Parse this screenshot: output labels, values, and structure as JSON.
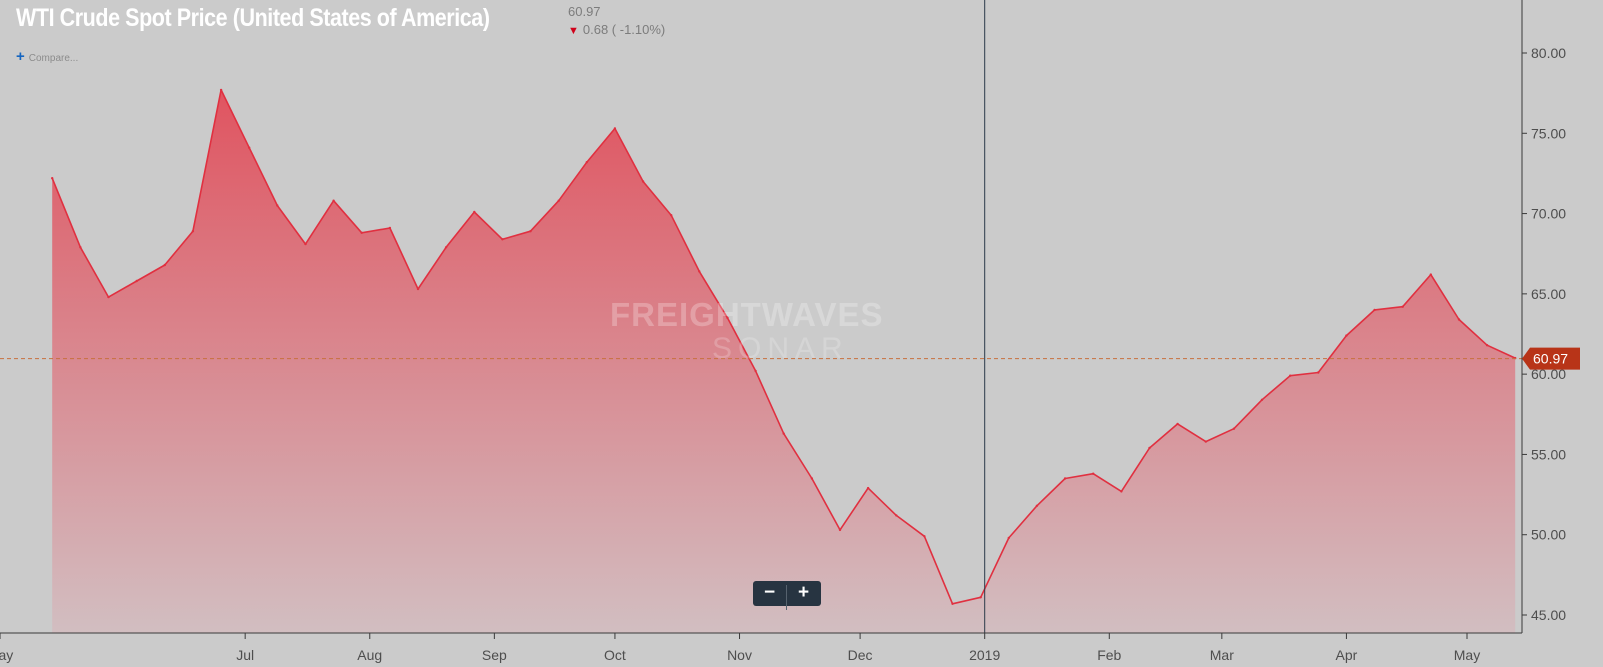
{
  "header": {
    "title": "WTI Crude Spot Price (United States of America)",
    "price": "60.97",
    "change": "0.68 ( -1.10%)",
    "change_direction_icon": "down-arrow-icon",
    "compare_label": "Compare...",
    "compare_icon": "plus-icon"
  },
  "watermark": {
    "line1": "FREIGHTWAVES",
    "line2": "SONAR"
  },
  "zoom": {
    "minus_label": "−",
    "plus_label": "+"
  },
  "colors": {
    "line": "#e03040",
    "area_top": "#e05a66",
    "area_bottom": "#d0bcbf",
    "background": "#cbcbcb",
    "last_badge": "#b83418",
    "crosshair": "#2b3a4a"
  },
  "chart_data": {
    "type": "area",
    "series": [
      {
        "x": [
          "2018-05-14",
          "2018-05-21",
          "2018-05-28",
          "2018-06-04",
          "2018-06-11",
          "2018-06-18",
          "2018-06-25",
          "2018-07-02",
          "2018-07-09",
          "2018-07-16",
          "2018-07-23",
          "2018-07-30",
          "2018-08-06",
          "2018-08-13",
          "2018-08-20",
          "2018-08-27",
          "2018-09-03",
          "2018-09-10",
          "2018-09-17",
          "2018-09-24",
          "2018-10-01",
          "2018-10-08",
          "2018-10-15",
          "2018-10-22",
          "2018-10-29",
          "2018-11-05",
          "2018-11-12",
          "2018-11-19",
          "2018-11-26",
          "2018-12-03",
          "2018-12-10",
          "2018-12-17",
          "2018-12-24",
          "2018-12-31",
          "2019-01-07",
          "2019-01-14",
          "2019-01-21",
          "2019-01-28",
          "2019-02-04",
          "2019-02-11",
          "2019-02-18",
          "2019-02-25",
          "2019-03-04",
          "2019-03-11",
          "2019-03-18",
          "2019-03-25",
          "2019-04-01",
          "2019-04-08",
          "2019-04-15",
          "2019-04-22",
          "2019-04-29",
          "2019-05-06",
          "2019-05-13"
        ],
        "values": [
          72.2,
          67.9,
          64.8,
          65.8,
          66.8,
          68.9,
          77.7,
          74.1,
          70.5,
          68.1,
          70.8,
          68.8,
          69.1,
          65.3,
          67.9,
          70.1,
          68.4,
          68.9,
          70.8,
          73.2,
          75.3,
          72.0,
          69.9,
          66.4,
          63.5,
          60.2,
          56.3,
          53.5,
          50.3,
          52.9,
          51.2,
          49.9,
          45.7,
          46.1,
          49.8,
          51.8,
          53.5,
          53.8,
          52.7,
          55.4,
          56.9,
          55.8,
          56.6,
          58.4,
          59.9,
          60.1,
          62.4,
          64.0,
          64.2,
          66.2,
          63.4,
          61.8,
          61.0
        ]
      }
    ],
    "ylim": [
      44,
      84
    ],
    "y_ticks": [
      45.0,
      50.0,
      55.0,
      60.0,
      65.0,
      70.0,
      75.0,
      80.0
    ],
    "y_tick_labels": [
      "45.00",
      "50.00",
      "55.00",
      "60.00",
      "65.00",
      "70.00",
      "75.00",
      "80.00"
    ],
    "x_ticks": [
      {
        "date": "2018-05-01",
        "label": "May"
      },
      {
        "date": "2018-07-01",
        "label": "Jul"
      },
      {
        "date": "2018-08-01",
        "label": "Aug"
      },
      {
        "date": "2018-09-01",
        "label": "Sep"
      },
      {
        "date": "2018-10-01",
        "label": "Oct"
      },
      {
        "date": "2018-11-01",
        "label": "Nov"
      },
      {
        "date": "2018-12-01",
        "label": "Dec"
      },
      {
        "date": "2019-01-01",
        "label": "2019"
      },
      {
        "date": "2019-02-01",
        "label": "Feb"
      },
      {
        "date": "2019-03-01",
        "label": "Mar"
      },
      {
        "date": "2019-04-01",
        "label": "Apr"
      },
      {
        "date": "2019-05-01",
        "label": "May"
      }
    ],
    "crosshair_date": "2019-01-01",
    "last_value": 60.97,
    "last_value_label": "60.97",
    "grid": false
  }
}
